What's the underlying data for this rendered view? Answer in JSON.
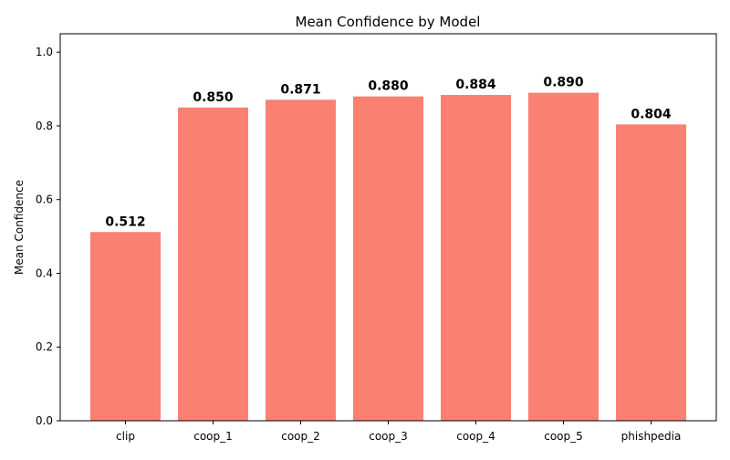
{
  "chart_data": {
    "type": "bar",
    "title": "Mean Confidence by Model",
    "xlabel": "",
    "ylabel": "Mean Confidence",
    "categories": [
      "clip",
      "coop_1",
      "coop_2",
      "coop_3",
      "coop_4",
      "coop_5",
      "phishpedia"
    ],
    "values": [
      0.512,
      0.85,
      0.871,
      0.88,
      0.884,
      0.89,
      0.804
    ],
    "value_labels": [
      "0.512",
      "0.850",
      "0.871",
      "0.880",
      "0.884",
      "0.890",
      "0.804"
    ],
    "ylim": [
      0,
      1.05
    ],
    "yticks": [
      0.0,
      0.2,
      0.4,
      0.6,
      0.8,
      1.0
    ],
    "ytick_labels": [
      "0.0",
      "0.2",
      "0.4",
      "0.6",
      "0.8",
      "1.0"
    ],
    "bar_color": "#fa8072",
    "grid": false,
    "legend": "none"
  }
}
